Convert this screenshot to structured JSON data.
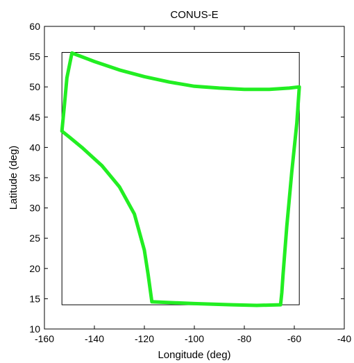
{
  "chart_data": {
    "type": "line",
    "title": "CONUS-E",
    "xlabel": "Longitude (deg)",
    "ylabel": "Latitude (deg)",
    "xlim": [
      -160,
      -40
    ],
    "ylim": [
      10,
      60
    ],
    "xticks": [
      -160,
      -140,
      -120,
      -100,
      -80,
      -60,
      -40
    ],
    "yticks": [
      10,
      15,
      20,
      25,
      30,
      35,
      40,
      45,
      50,
      55,
      60
    ],
    "grid": false,
    "series": [
      {
        "kind": "bounding-box",
        "color": "#000000",
        "x": [
          -153,
          -58,
          -58,
          -153,
          -153
        ],
        "y": [
          55.7,
          55.7,
          14.0,
          14.0,
          55.7
        ]
      },
      {
        "kind": "coverage-outline",
        "color": "#22ee22",
        "x": [
          -149,
          -140,
          -130,
          -120,
          -110,
          -100,
          -90,
          -80,
          -70,
          -62,
          -58,
          -59,
          -61,
          -63,
          -64.5,
          -65,
          -65.5,
          -75,
          -85,
          -100,
          -117,
          -118.5,
          -120,
          -124,
          -130,
          -137,
          -145,
          -150,
          -153,
          -152,
          -151,
          -149
        ],
        "y": [
          55.6,
          54.2,
          52.8,
          51.7,
          50.8,
          50.1,
          49.8,
          49.6,
          49.6,
          49.8,
          50.0,
          44.0,
          36.0,
          27.0,
          19.0,
          16.0,
          14.0,
          13.9,
          14.0,
          14.2,
          14.5,
          19.0,
          23.0,
          29.0,
          33.5,
          37.0,
          40.0,
          41.7,
          42.7,
          47.0,
          51.5,
          55.6
        ]
      }
    ]
  }
}
